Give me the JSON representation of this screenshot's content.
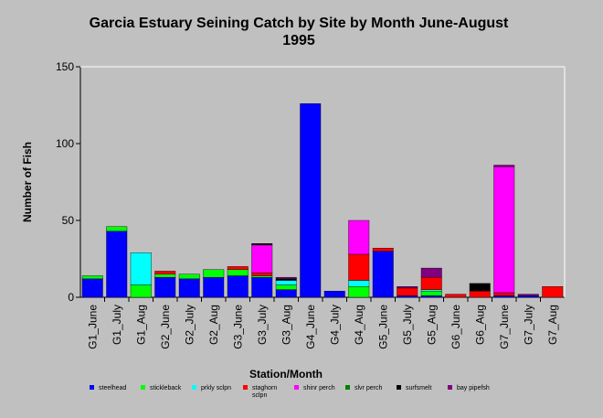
{
  "chart_data": {
    "type": "bar",
    "stacked": true,
    "title": "Garcia Estuary Seining Catch by Site by Month June-August 1995",
    "title_lines": [
      "Garcia Estuary Seining Catch by Site by Month June-August",
      "1995"
    ],
    "xlabel": "Station/Month",
    "ylabel": "Number of Fish",
    "ylim": [
      0,
      150
    ],
    "yticks": [
      0,
      50,
      100,
      150
    ],
    "grid": false,
    "legend_position": "bottom",
    "categories": [
      "G1_June",
      "G1_July",
      "G1_Aug",
      "G2_June",
      "G2_July",
      "G2_Aug",
      "G3_June",
      "G3_July",
      "G3_Aug",
      "G4_June",
      "G4_July",
      "G4_Aug",
      "G5_June",
      "G5_July",
      "G5_Aug",
      "G6_June",
      "G6_Aug",
      "G7_June",
      "G7_July",
      "G7_Aug"
    ],
    "series": [
      {
        "name": "steelhead",
        "color": "#0000ff",
        "values": [
          12,
          43,
          0,
          13,
          12,
          13,
          14,
          13,
          5,
          126,
          4,
          0,
          30,
          1,
          1,
          0,
          0,
          1,
          1,
          0
        ]
      },
      {
        "name": "stickleback",
        "color": "#00ff00",
        "values": [
          2,
          3,
          8,
          2,
          3,
          5,
          4,
          1,
          3,
          0,
          0,
          7,
          0,
          0,
          3,
          0,
          0,
          0,
          0,
          0
        ]
      },
      {
        "name": "prickly sculpin",
        "color": "#00ffff",
        "values": [
          0,
          0,
          21,
          0,
          0,
          0,
          0,
          0,
          3,
          0,
          0,
          4,
          0,
          0,
          1,
          0,
          0,
          0,
          0,
          0
        ]
      },
      {
        "name": "staghorn sculpin",
        "color": "#ff0000",
        "values": [
          0,
          0,
          0,
          2,
          0,
          0,
          2,
          2,
          0,
          0,
          0,
          17,
          2,
          5,
          8,
          2,
          4,
          2,
          0,
          7
        ]
      },
      {
        "name": "shiner perch",
        "color": "#ff00ff",
        "values": [
          0,
          0,
          0,
          0,
          0,
          0,
          0,
          18,
          0,
          0,
          0,
          22,
          0,
          0,
          0,
          0,
          0,
          82,
          0,
          0
        ]
      },
      {
        "name": "silver perch",
        "color": "#008000",
        "values": [
          0,
          0,
          0,
          0,
          0,
          0,
          0,
          0,
          0,
          0,
          0,
          0,
          0,
          0,
          0,
          0,
          0,
          0,
          0,
          0
        ]
      },
      {
        "name": "surfsmelt",
        "color": "#000000",
        "values": [
          0,
          0,
          0,
          0,
          0,
          0,
          0,
          1,
          1,
          0,
          0,
          0,
          0,
          0,
          0,
          0,
          5,
          0,
          0,
          0
        ]
      },
      {
        "name": "bay pipefish",
        "color": "#800080",
        "values": [
          0,
          0,
          0,
          0,
          0,
          0,
          0,
          0,
          1,
          0,
          0,
          0,
          0,
          1,
          6,
          0,
          0,
          1,
          1,
          0
        ]
      }
    ],
    "legend_labels": [
      [
        "steelhead"
      ],
      [
        "stickleback"
      ],
      [
        "prkly sclpn"
      ],
      [
        "staghorn",
        "sclpn"
      ],
      [
        "shinr perch"
      ],
      [
        "slvr perch"
      ],
      [
        "surfsmelt"
      ],
      [
        "bay pipefsh"
      ]
    ]
  }
}
